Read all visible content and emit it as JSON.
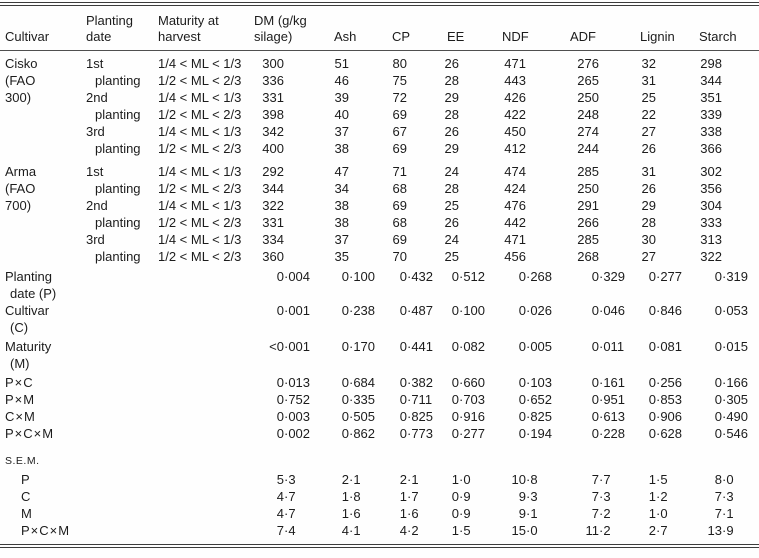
{
  "colors": {
    "text": "#1c1c1c",
    "rule": "#3c3c3c",
    "background": "#fefefe"
  },
  "table": {
    "columns": [
      {
        "key": "cultivar",
        "label": "Cultivar"
      },
      {
        "key": "planting-date",
        "label": "Planting date"
      },
      {
        "key": "maturity",
        "label": "Maturity at harvest"
      },
      {
        "key": "dm",
        "label": "DM (g/kg silage)"
      },
      {
        "key": "ash",
        "label": "Ash"
      },
      {
        "key": "cp",
        "label": "CP"
      },
      {
        "key": "ee",
        "label": "EE"
      },
      {
        "key": "ndf",
        "label": "NDF"
      },
      {
        "key": "adf",
        "label": "ADF"
      },
      {
        "key": "lignin",
        "label": "Lignin"
      },
      {
        "key": "starch",
        "label": "Starch"
      }
    ],
    "rows": [
      {
        "cultivar": "Cisko",
        "ci": false,
        "pd": "1st",
        "pi": false,
        "mat": "1/4 < ML < 1/3",
        "v": [
          "300",
          "51",
          "80",
          "26",
          "471",
          "276",
          "32",
          "298"
        ]
      },
      {
        "cultivar": "(FAO",
        "ci": true,
        "pd": "planting",
        "pi": true,
        "mat": "1/2 < ML < 2/3",
        "v": [
          "336",
          "46",
          "75",
          "28",
          "443",
          "265",
          "31",
          "344"
        ]
      },
      {
        "cultivar": "300)",
        "ci": true,
        "pd": "2nd",
        "pi": false,
        "mat": "1/4 < ML < 1/3",
        "v": [
          "331",
          "39",
          "72",
          "29",
          "426",
          "250",
          "25",
          "351"
        ]
      },
      {
        "cultivar": "",
        "ci": false,
        "pd": "planting",
        "pi": true,
        "mat": "1/2 < ML < 2/3",
        "v": [
          "398",
          "40",
          "69",
          "28",
          "422",
          "248",
          "22",
          "339"
        ]
      },
      {
        "cultivar": "",
        "ci": false,
        "pd": "3rd",
        "pi": false,
        "mat": "1/4 < ML < 1/3",
        "v": [
          "342",
          "37",
          "67",
          "26",
          "450",
          "274",
          "27",
          "338"
        ]
      },
      {
        "cultivar": "",
        "ci": false,
        "pd": "planting",
        "pi": true,
        "mat": "1/2 < ML < 2/3",
        "v": [
          "400",
          "38",
          "69",
          "29",
          "412",
          "244",
          "26",
          "366"
        ]
      },
      {
        "cultivar": "Arma",
        "ci": false,
        "pd": "1st",
        "pi": false,
        "mat": "1/4 < ML < 1/3",
        "v": [
          "292",
          "47",
          "71",
          "24",
          "474",
          "285",
          "31",
          "302"
        ],
        "gap": true
      },
      {
        "cultivar": "(FAO",
        "ci": true,
        "pd": "planting",
        "pi": true,
        "mat": "1/2 < ML < 2/3",
        "v": [
          "344",
          "34",
          "68",
          "28",
          "424",
          "250",
          "26",
          "356"
        ]
      },
      {
        "cultivar": "700)",
        "ci": true,
        "pd": "2nd",
        "pi": false,
        "mat": "1/4 < ML < 1/3",
        "v": [
          "322",
          "38",
          "69",
          "25",
          "476",
          "291",
          "29",
          "304"
        ]
      },
      {
        "cultivar": "",
        "ci": false,
        "pd": "planting",
        "pi": true,
        "mat": "1/2 < ML < 2/3",
        "v": [
          "331",
          "38",
          "68",
          "26",
          "442",
          "266",
          "28",
          "333"
        ]
      },
      {
        "cultivar": "",
        "ci": false,
        "pd": "3rd",
        "pi": false,
        "mat": "1/4 < ML < 1/3",
        "v": [
          "334",
          "37",
          "69",
          "24",
          "471",
          "285",
          "30",
          "313"
        ]
      },
      {
        "cultivar": "",
        "ci": false,
        "pd": "planting",
        "pi": true,
        "mat": "1/2 < ML < 2/3",
        "v": [
          "360",
          "35",
          "70",
          "25",
          "456",
          "268",
          "27",
          "322"
        ]
      }
    ],
    "stat_rows": [
      {
        "lines": [
          "Planting",
          "date (P)"
        ],
        "v": [
          "0·004",
          "0·100",
          "0·432",
          "0·512",
          "0·268",
          "0·329",
          "0·277",
          "0·319"
        ]
      },
      {
        "lines": [
          "Cultivar",
          "(C)"
        ],
        "v": [
          "0·001",
          "0·238",
          "0·487",
          "0·100",
          "0·026",
          "0·046",
          "0·846",
          "0·053"
        ]
      },
      {
        "lines": [
          "Maturity",
          "(M)"
        ],
        "v": [
          "<0·001",
          "0·170",
          "0·441",
          "0·082",
          "0·005",
          "0·011",
          "0·081",
          "0·015"
        ]
      },
      {
        "lines": [
          "P×C"
        ],
        "v": [
          "0·013",
          "0·684",
          "0·382",
          "0·660",
          "0·103",
          "0·161",
          "0·256",
          "0·166"
        ]
      },
      {
        "lines": [
          "P×M"
        ],
        "v": [
          "0·752",
          "0·335",
          "0·711",
          "0·703",
          "0·652",
          "0·951",
          "0·853",
          "0·305"
        ]
      },
      {
        "lines": [
          "C×M"
        ],
        "v": [
          "0·003",
          "0·505",
          "0·825",
          "0·916",
          "0·825",
          "0·613",
          "0·906",
          "0·490"
        ]
      },
      {
        "lines": [
          "P×C×M"
        ],
        "v": [
          "0·002",
          "0·862",
          "0·773",
          "0·277",
          "0·194",
          "0·228",
          "0·628",
          "0·546"
        ]
      }
    ],
    "sem": {
      "label": "S.E.M.",
      "rows": [
        {
          "label": "P",
          "v": [
            "5·3",
            "2·1",
            "2·1",
            "1·0",
            "10·8",
            "7·7",
            "1·5",
            "8·0"
          ]
        },
        {
          "label": "C",
          "v": [
            "4·7",
            "1·8",
            "1·7",
            "0·9",
            "9·3",
            "7·3",
            "1·2",
            "7·3"
          ]
        },
        {
          "label": "M",
          "v": [
            "4·7",
            "1·6",
            "1·6",
            "0·9",
            "9·1",
            "7·2",
            "1·0",
            "7·1"
          ]
        },
        {
          "label": "P×C×M",
          "v": [
            "7·4",
            "4·1",
            "4·2",
            "1·5",
            "15·0",
            "11·2",
            "2·7",
            "13·9"
          ]
        }
      ]
    }
  }
}
